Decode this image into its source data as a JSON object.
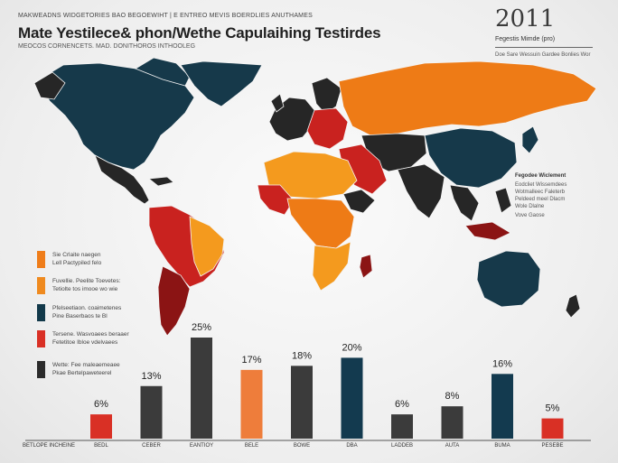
{
  "header": {
    "top_line": "MAKWEADNS WIDGETORIES BAO BEGOEWIHT | E ENTREO MEVIS BOERDLIES ANUTHAMES",
    "title": "Mate Yestilece& phon/Wethe Capulaihing Testirdes",
    "subtitle": "MEOCOS CORNENCETS. MAD. DONITHOROS INTHOOLEG"
  },
  "year_box": {
    "year": "2011",
    "label": "Fegestis Mimde (pro)",
    "note": "Doe Sare Wessuin Gardee Bonlies Wor"
  },
  "side_note": {
    "title": "Fegodee Wiclement",
    "lines": [
      "Eodcliet Wissemdees",
      "Wotmalleec Faleterb",
      "Peldeed meel Dlacm",
      "Wole Dlalne"
    ],
    "tag": "Vove Gaose"
  },
  "legend": [
    {
      "color": "#ef7d1a",
      "lines": [
        "Sie Crlaite naegen",
        "Lell Pactypiled felo"
      ]
    },
    {
      "color": "#ef8a1f",
      "lines": [
        "Fuvellie. Peelite Toevetes:",
        "Tetiolte tos imooe wo wie"
      ]
    },
    {
      "color": "#12394a",
      "lines": [
        "Pfelseetiaon. coaimetenes",
        "Pine Baserbaos te Bl"
      ]
    },
    {
      "color": "#d93025",
      "lines": [
        "Tersene. Wasvoaees beraaer",
        "Fetetitoe Ibloe vdelvaees"
      ]
    },
    {
      "color": "#2b2b2b",
      "lines": [
        "Wette: Fee maleaemeaee",
        "Pkae Bertelpaweteerel"
      ]
    }
  ],
  "map_colors": {
    "orange": "#f49a1e",
    "dark_orange": "#ee7b16",
    "navy": "#16394a",
    "red": "#c9221f",
    "dark_red": "#8b1414",
    "black": "#262626"
  },
  "chart_data": {
    "type": "bar",
    "title": "",
    "xlabel": "",
    "ylabel": "",
    "ylim": [
      0,
      25
    ],
    "axis_left_label": "BETLOPE INCHEINE",
    "categories": [
      "BEDL",
      "CEBER",
      "EANTIOY",
      "BELE",
      "BOWE",
      "DBA",
      "LADDEB",
      "AUTA",
      "BUMA",
      "PESEBE"
    ],
    "values": [
      6,
      13,
      25,
      17,
      18,
      20,
      6,
      8,
      16,
      5
    ],
    "labels": [
      "6%",
      "13%",
      "25%",
      "17%",
      "18%",
      "20%",
      "6%",
      "8%",
      "16%",
      "5%"
    ],
    "colors": [
      "#d93025",
      "#3b3b3b",
      "#3b3b3b",
      "#ee7d3b",
      "#3b3b3b",
      "#133a4f",
      "#3b3b3b",
      "#3b3b3b",
      "#133a4f",
      "#d93025"
    ]
  }
}
